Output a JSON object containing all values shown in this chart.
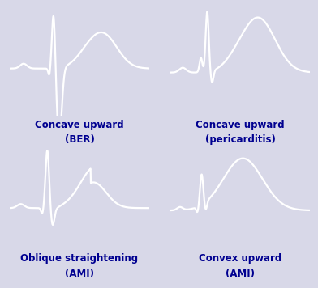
{
  "background_color": "#d8d8e8",
  "panel_bg": "#0a0a5e",
  "line_color": "#ffffff",
  "line_width": 1.6,
  "title_fontsize": 8.5,
  "title_color": "#000090",
  "labels": [
    [
      "Concave upward",
      "(BER)"
    ],
    [
      "Concave upward",
      "(pericarditis)"
    ],
    [
      "Oblique straightening",
      "(AMI)"
    ],
    [
      "Convex upward",
      "(AMI)"
    ]
  ],
  "fig_width": 3.92,
  "fig_height": 3.56,
  "fig_dpi": 100
}
